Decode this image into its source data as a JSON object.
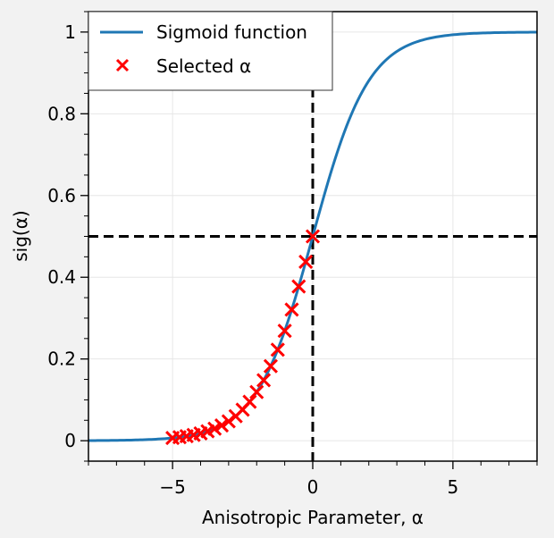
{
  "chart_data": {
    "type": "line",
    "xlabel": "Anisotropic Parameter, α",
    "ylabel": "sig(α)",
    "xlim": [
      -8,
      8
    ],
    "ylim": [
      -0.05,
      1.05
    ],
    "xticks": [
      -5,
      0,
      5
    ],
    "xtick_labels": [
      "−5",
      "0",
      "5"
    ],
    "yticks": [
      0,
      0.2,
      0.4,
      0.6,
      0.8,
      1
    ],
    "ytick_labels": [
      "0",
      "0.2",
      "0.4",
      "0.6",
      "0.8",
      "1"
    ],
    "grid": true,
    "legend_position": "top-left",
    "series": [
      {
        "name": "Sigmoid function",
        "kind": "line",
        "color": "#1f77b4",
        "function": "sigmoid",
        "x_range": [
          -8,
          8
        ]
      },
      {
        "name": "Selected α",
        "kind": "scatter",
        "marker": "x",
        "color": "#ff0000",
        "x": [
          -5.0,
          -4.75,
          -4.5,
          -4.25,
          -4.0,
          -3.75,
          -3.5,
          -3.25,
          -3.0,
          -2.75,
          -2.5,
          -2.25,
          -2.0,
          -1.75,
          -1.5,
          -1.25,
          -1.0,
          -0.75,
          -0.5,
          -0.25,
          0.0
        ],
        "y": [
          0.0067,
          0.0086,
          0.011,
          0.014,
          0.018,
          0.023,
          0.0293,
          0.0374,
          0.0474,
          0.0601,
          0.0759,
          0.0953,
          0.1192,
          0.148,
          0.1824,
          0.2227,
          0.2689,
          0.3208,
          0.3775,
          0.4378,
          0.5
        ]
      }
    ],
    "reference_lines": [
      {
        "orientation": "vertical",
        "value": 0,
        "style": "dashed",
        "color": "#000000"
      },
      {
        "orientation": "horizontal",
        "value": 0.5,
        "style": "dashed",
        "color": "#000000"
      }
    ]
  }
}
